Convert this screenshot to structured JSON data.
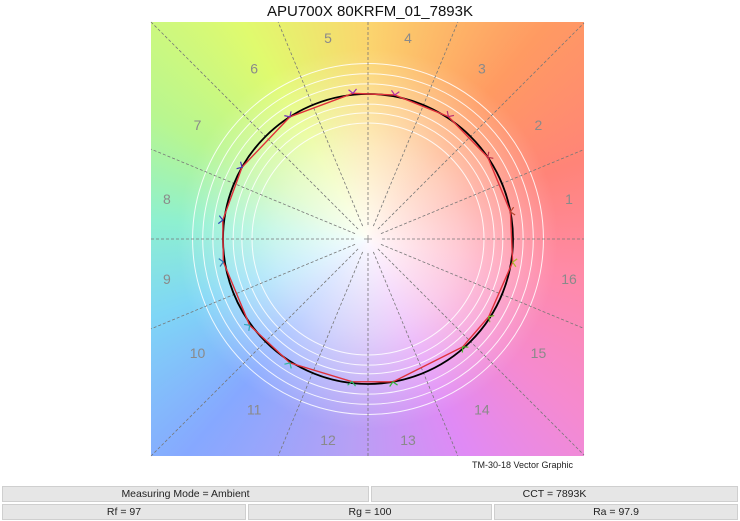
{
  "chart_data": {
    "type": "polar-vector",
    "title": "APU700X 80KRFM_01_7893K",
    "caption": "TM-30-18 Vector Graphic",
    "bin_labels": [
      "1",
      "2",
      "3",
      "4",
      "5",
      "6",
      "7",
      "8",
      "9",
      "10",
      "11",
      "12",
      "13",
      "14",
      "15",
      "16"
    ],
    "reference_ratio": 1.0,
    "test_points": [
      {
        "bin": "1",
        "relative_chroma": 1.0,
        "hue_angle_deg": 10.8
      },
      {
        "bin": "2",
        "relative_chroma": 1.0,
        "hue_angle_deg": 34.3
      },
      {
        "bin": "3",
        "relative_chroma": 1.01,
        "hue_angle_deg": 56.7
      },
      {
        "bin": "4",
        "relative_chroma": 1.01,
        "hue_angle_deg": 79.5
      },
      {
        "bin": "5",
        "relative_chroma": 1.01,
        "hue_angle_deg": 95.9
      },
      {
        "bin": "6",
        "relative_chroma": 1.0,
        "hue_angle_deg": 122.6
      },
      {
        "bin": "7",
        "relative_chroma": 1.0,
        "hue_angle_deg": 150.3
      },
      {
        "bin": "8",
        "relative_chroma": 1.01,
        "hue_angle_deg": 172.6
      },
      {
        "bin": "9",
        "relative_chroma": 1.01,
        "hue_angle_deg": 189.0
      },
      {
        "bin": "10",
        "relative_chroma": 1.01,
        "hue_angle_deg": 216.1
      },
      {
        "bin": "11",
        "relative_chroma": 1.01,
        "hue_angle_deg": 237.8
      },
      {
        "bin": "12",
        "relative_chroma": 0.99,
        "hue_angle_deg": 263.6
      },
      {
        "bin": "13",
        "relative_chroma": 1.0,
        "hue_angle_deg": 279.9
      },
      {
        "bin": "14",
        "relative_chroma": 0.99,
        "hue_angle_deg": 311.3
      },
      {
        "bin": "15",
        "relative_chroma": 0.99,
        "hue_angle_deg": 327.2
      },
      {
        "bin": "16",
        "relative_chroma": 1.01,
        "hue_angle_deg": 350.9
      }
    ],
    "colors": {
      "reference": "#000000",
      "test": "#e0303a",
      "grid": "#777777",
      "label": "#8a8a8a"
    }
  },
  "info": {
    "measuring_mode": "Measuring Mode = Ambient",
    "cct": "CCT = 7893K",
    "rf": "Rf = 97",
    "rg": "Rg = 100",
    "ra": "Ra = 97.9"
  }
}
